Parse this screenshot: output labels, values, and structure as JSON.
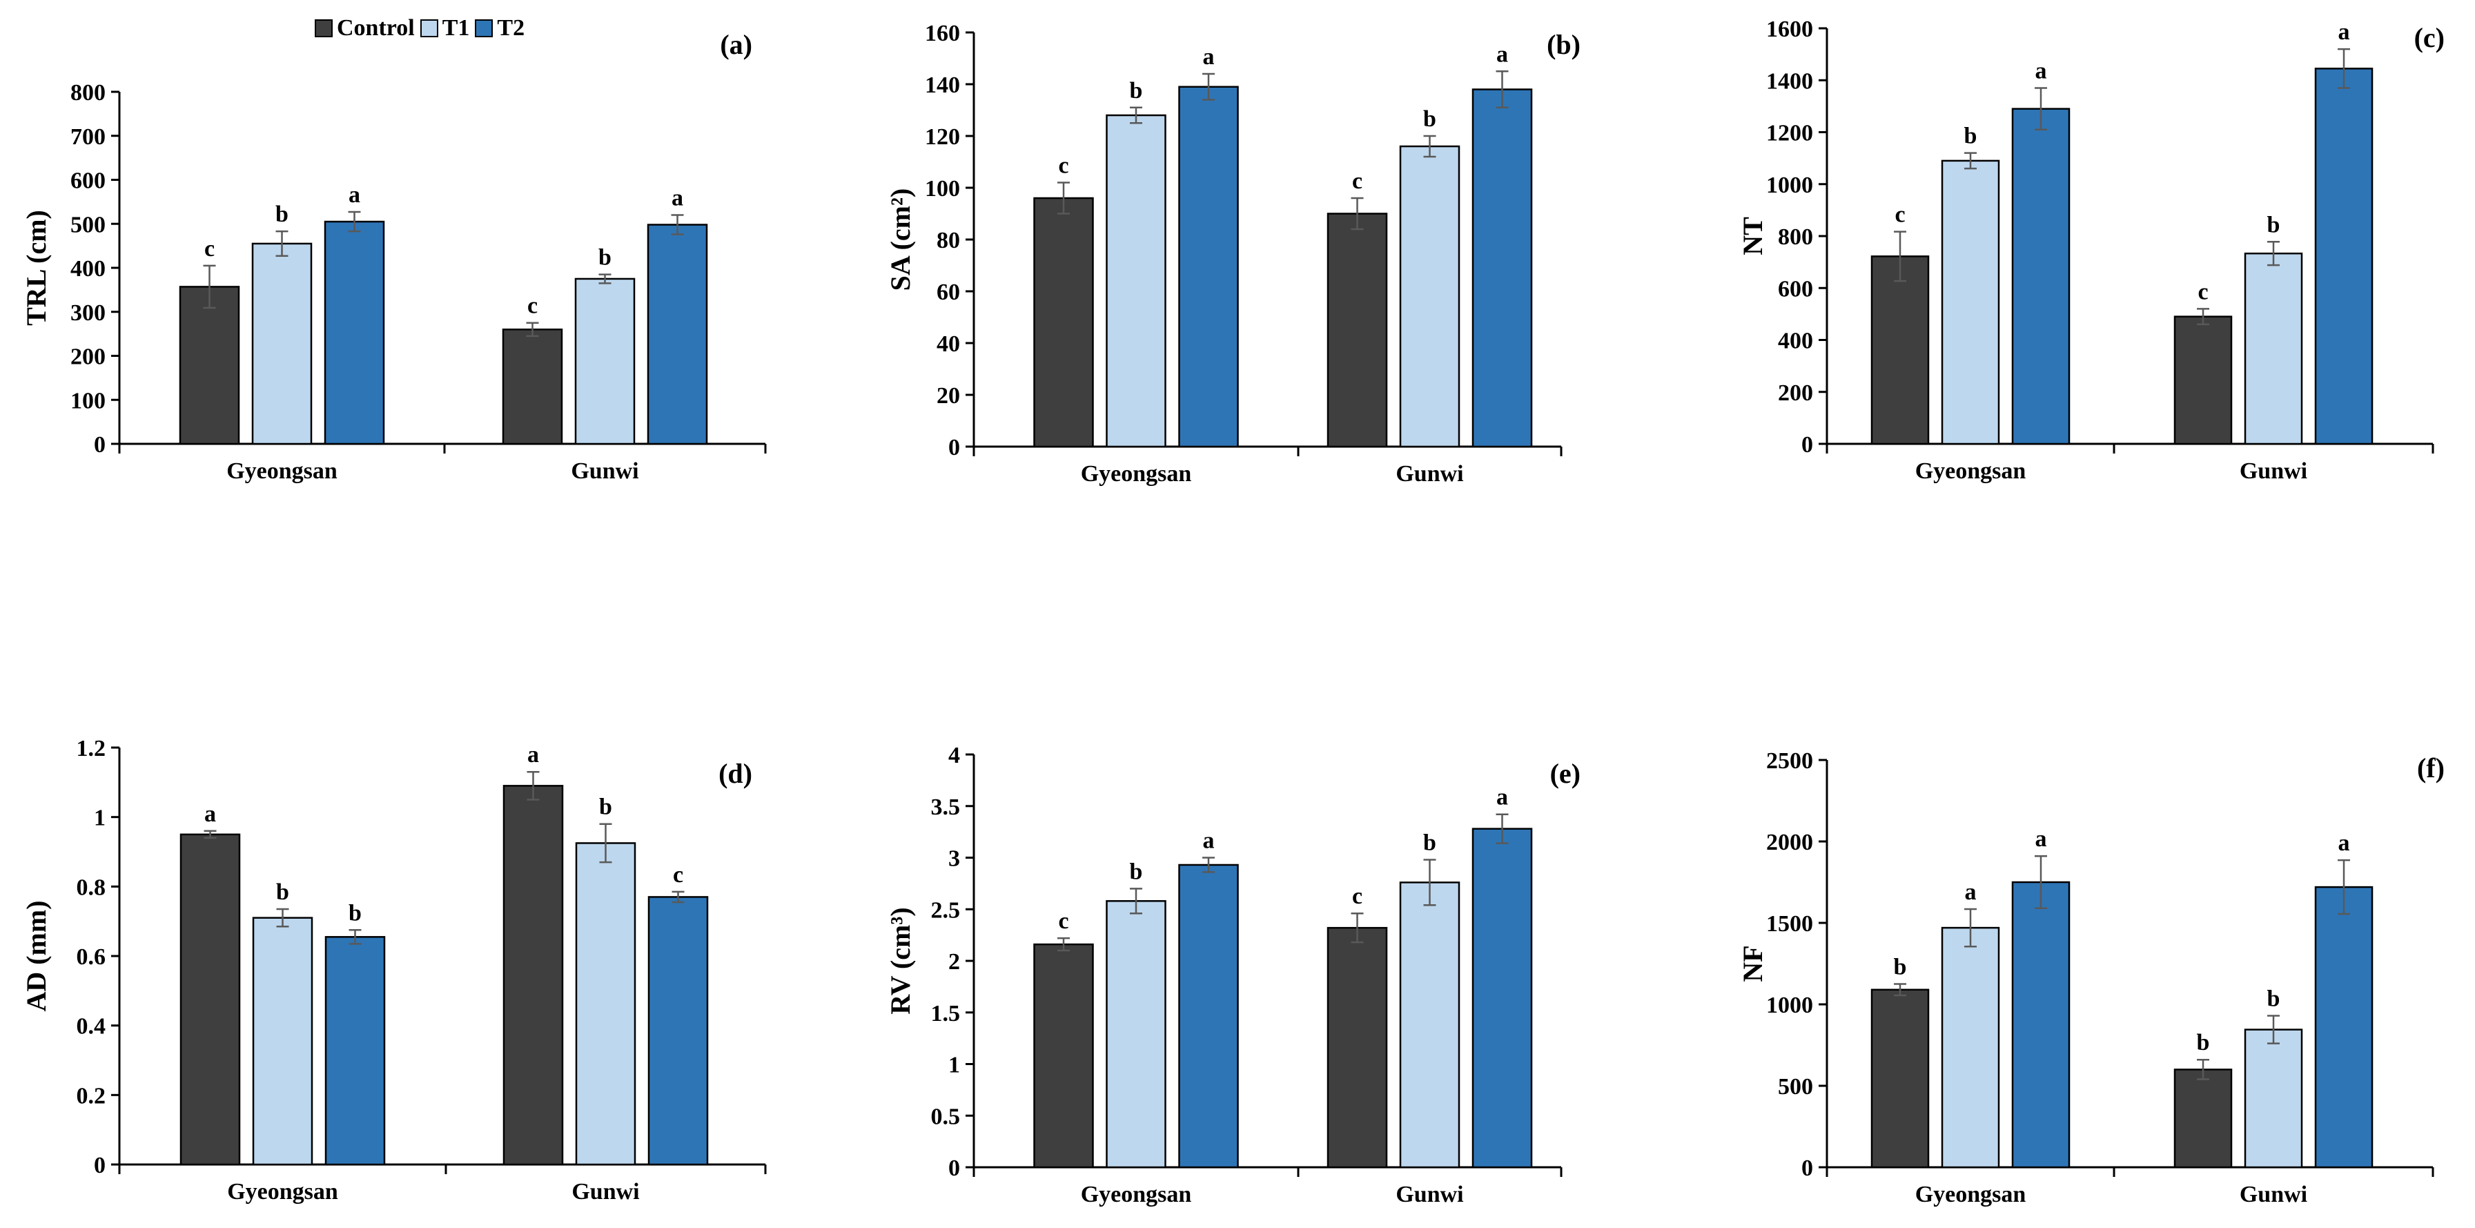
{
  "legend": {
    "items": [
      {
        "label": "Control",
        "color": "#3f3f3f"
      },
      {
        "label": "T1",
        "color": "#bdd7ee"
      },
      {
        "label": "T2",
        "color": "#2e75b6"
      }
    ]
  },
  "chart_data": [
    {
      "type": "bar",
      "panel": "(a)",
      "title": "",
      "xlabel": "",
      "ylabel": "TRL (cm)",
      "categories": [
        "Gyeongsan",
        "Gunwi"
      ],
      "ylim": [
        0,
        800
      ],
      "ytick_step": 100,
      "ytick_decimals": 0,
      "series": [
        {
          "name": "Control",
          "values": [
            357,
            260
          ],
          "errors": [
            48,
            15
          ],
          "letters": [
            "c",
            "c"
          ]
        },
        {
          "name": "T1",
          "values": [
            455,
            375
          ],
          "errors": [
            28,
            10
          ],
          "letters": [
            "b",
            "b"
          ]
        },
        {
          "name": "T2",
          "values": [
            505,
            498
          ],
          "errors": [
            22,
            22
          ],
          "letters": [
            "a",
            "a"
          ]
        }
      ]
    },
    {
      "type": "bar",
      "panel": "(b)",
      "title": "",
      "xlabel": "",
      "ylabel": "SA (cm²)",
      "categories": [
        "Gyeongsan",
        "Gunwi"
      ],
      "ylim": [
        0,
        160
      ],
      "ytick_step": 20,
      "ytick_decimals": 0,
      "series": [
        {
          "name": "Control",
          "values": [
            96,
            90
          ],
          "errors": [
            6,
            6
          ],
          "letters": [
            "c",
            "c"
          ]
        },
        {
          "name": "T1",
          "values": [
            128,
            116
          ],
          "errors": [
            3,
            4
          ],
          "letters": [
            "b",
            "b"
          ]
        },
        {
          "name": "T2",
          "values": [
            139,
            138
          ],
          "errors": [
            5,
            7
          ],
          "letters": [
            "a",
            "a"
          ]
        }
      ]
    },
    {
      "type": "bar",
      "panel": "(c)",
      "title": "",
      "xlabel": "",
      "ylabel": "NT",
      "categories": [
        "Gyeongsan",
        "Gunwi"
      ],
      "ylim": [
        0,
        1600
      ],
      "ytick_step": 200,
      "ytick_decimals": 0,
      "series": [
        {
          "name": "Control",
          "values": [
            722,
            490
          ],
          "errors": [
            95,
            30
          ],
          "letters": [
            "c",
            "c"
          ]
        },
        {
          "name": "T1",
          "values": [
            1090,
            733
          ],
          "errors": [
            30,
            45
          ],
          "letters": [
            "b",
            "b"
          ]
        },
        {
          "name": "T2",
          "values": [
            1290,
            1445
          ],
          "errors": [
            80,
            75
          ],
          "letters": [
            "a",
            "a"
          ]
        }
      ]
    },
    {
      "type": "bar",
      "panel": "(d)",
      "title": "",
      "xlabel": "",
      "ylabel": "AD (mm)",
      "categories": [
        "Gyeongsan",
        "Gunwi"
      ],
      "ylim": [
        0,
        1.2
      ],
      "ytick_step": 0.2,
      "ytick_decimals": 1,
      "series": [
        {
          "name": "Control",
          "values": [
            0.95,
            1.09
          ],
          "errors": [
            0.01,
            0.04
          ],
          "letters": [
            "a",
            "a"
          ]
        },
        {
          "name": "T1",
          "values": [
            0.71,
            0.925
          ],
          "errors": [
            0.025,
            0.055
          ],
          "letters": [
            "b",
            "b"
          ]
        },
        {
          "name": "T2",
          "values": [
            0.655,
            0.77
          ],
          "errors": [
            0.02,
            0.015
          ],
          "letters": [
            "b",
            "c"
          ]
        }
      ]
    },
    {
      "type": "bar",
      "panel": "(e)",
      "title": "",
      "xlabel": "",
      "ylabel": "RV (cm³)",
      "categories": [
        "Gyeongsan",
        "Gunwi"
      ],
      "ylim": [
        0,
        4
      ],
      "ytick_step": 0.5,
      "ytick_decimals": 1,
      "series": [
        {
          "name": "Control",
          "values": [
            2.16,
            2.32
          ],
          "errors": [
            0.06,
            0.14
          ],
          "letters": [
            "c",
            "c"
          ]
        },
        {
          "name": "T1",
          "values": [
            2.58,
            2.76
          ],
          "errors": [
            0.12,
            0.22
          ],
          "letters": [
            "b",
            "b"
          ]
        },
        {
          "name": "T2",
          "values": [
            2.93,
            3.28
          ],
          "errors": [
            0.07,
            0.14
          ],
          "letters": [
            "a",
            "a"
          ]
        }
      ]
    },
    {
      "type": "bar",
      "panel": "(f)",
      "title": "",
      "xlabel": "",
      "ylabel": "NF",
      "categories": [
        "Gyeongsan",
        "Gunwi"
      ],
      "ylim": [
        0,
        2500
      ],
      "ytick_step": 500,
      "ytick_decimals": 0,
      "series": [
        {
          "name": "Control",
          "values": [
            1090,
            600
          ],
          "errors": [
            35,
            60
          ],
          "letters": [
            "b",
            "b"
          ]
        },
        {
          "name": "T1",
          "values": [
            1470,
            845
          ],
          "errors": [
            115,
            85
          ],
          "letters": [
            "a",
            "b"
          ]
        },
        {
          "name": "T2",
          "values": [
            1750,
            1720
          ],
          "errors": [
            160,
            165
          ],
          "letters": [
            "a",
            "a"
          ]
        }
      ]
    }
  ]
}
